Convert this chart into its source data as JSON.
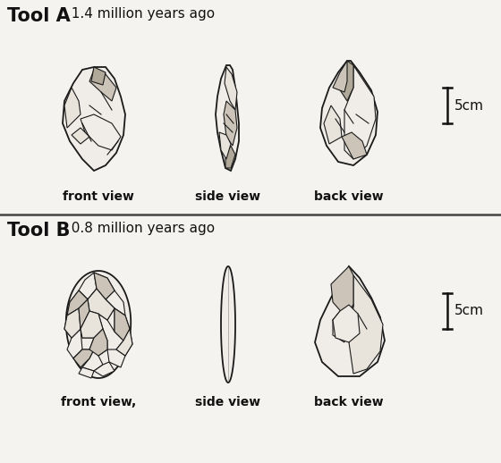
{
  "bg_color": "#f5f3ef",
  "title_a": "Tool A",
  "subtitle_a": "  1.4 million years ago",
  "title_b": "Tool B",
  "subtitle_b": "  0.8 million years ago",
  "labels_a": [
    "front view",
    "side view",
    "back view"
  ],
  "labels_b": [
    "front view,",
    "side view",
    "back view"
  ],
  "scale_label": "5cm",
  "line_color": "#1a1a1a",
  "fill_light": "#e8e4dc",
  "fill_white": "#f0ede8",
  "fill_dark": "#b0a898",
  "fill_med": "#ccc4b8",
  "text_color": "#111111",
  "title_fontsize": 15,
  "subtitle_fontsize": 11,
  "label_fontsize": 10,
  "scale_fontsize": 11
}
